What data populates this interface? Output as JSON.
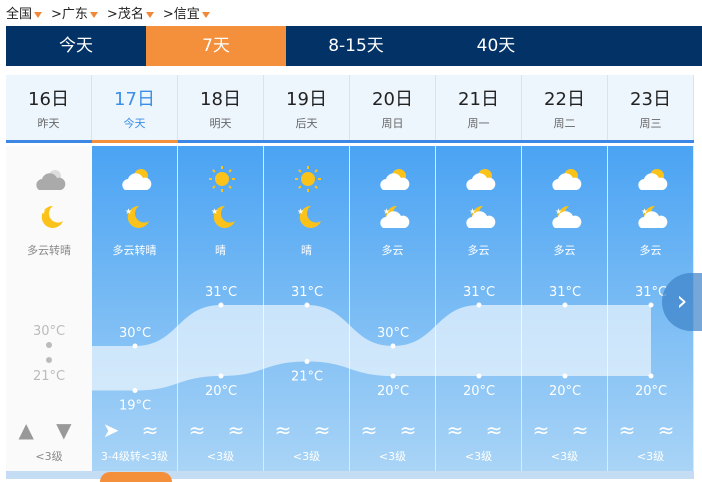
{
  "breadcrumb": [
    "全国",
    ">广东",
    ">茂名",
    ">信宜"
  ],
  "nav": [
    {
      "label": "今天"
    },
    {
      "label": "7天",
      "active": true
    },
    {
      "label": "8-15天"
    },
    {
      "label": "40天"
    }
  ],
  "days": [
    {
      "date": "16日",
      "week": "昨天",
      "desc": "多云转晴",
      "high": "30°C",
      "low": "21°C",
      "high_v": 30,
      "low_v": 21,
      "wind": "▲ ▼",
      "level": "<3级",
      "day_icon": "cloudy-icon",
      "night_icon": "clear-night-icon"
    },
    {
      "date": "17日",
      "week": "今天",
      "desc": "多云转晴",
      "high": "30°C",
      "low": "19°C",
      "high_v": 30,
      "low_v": 19,
      "wind": "➤ ≈",
      "level": "3-4级转<3级",
      "day_icon": "partly-cloudy-icon",
      "night_icon": "clear-night-icon"
    },
    {
      "date": "18日",
      "week": "明天",
      "desc": "晴",
      "high": "31°C",
      "low": "20°C",
      "high_v": 31,
      "low_v": 20,
      "wind": "≈ ≈",
      "level": "<3级",
      "day_icon": "sunny-icon",
      "night_icon": "clear-night-icon"
    },
    {
      "date": "19日",
      "week": "后天",
      "desc": "晴",
      "high": "31°C",
      "low": "21°C",
      "high_v": 31,
      "low_v": 21,
      "wind": "≈ ≈",
      "level": "<3级",
      "day_icon": "sunny-icon",
      "night_icon": "clear-night-icon"
    },
    {
      "date": "20日",
      "week": "周日",
      "desc": "多云",
      "high": "30°C",
      "low": "20°C",
      "high_v": 30,
      "low_v": 20,
      "wind": "≈ ≈",
      "level": "<3级",
      "day_icon": "partly-cloudy-icon",
      "night_icon": "cloudy-night-icon"
    },
    {
      "date": "21日",
      "week": "周一",
      "desc": "多云",
      "high": "31°C",
      "low": "20°C",
      "high_v": 31,
      "low_v": 20,
      "wind": "≈ ≈",
      "level": "<3级",
      "day_icon": "partly-cloudy-icon",
      "night_icon": "cloudy-night-icon"
    },
    {
      "date": "22日",
      "week": "周二",
      "desc": "多云",
      "high": "31°C",
      "low": "20°C",
      "high_v": 31,
      "low_v": 20,
      "wind": "≈ ≈",
      "level": "<3级",
      "day_icon": "partly-cloudy-icon",
      "night_icon": "cloudy-night-icon"
    },
    {
      "date": "23日",
      "week": "周三",
      "desc": "多云",
      "high": "31°C",
      "low": "20°C",
      "high_v": 31,
      "low_v": 20,
      "wind": "≈ ≈",
      "level": "<3级",
      "day_icon": "partly-cloudy-icon",
      "night_icon": "cloudy-night-icon"
    }
  ],
  "colors": {
    "nav": "#033366",
    "accent": "#f48f3b",
    "sky": "#4aa3f3"
  },
  "next_label": "›"
}
